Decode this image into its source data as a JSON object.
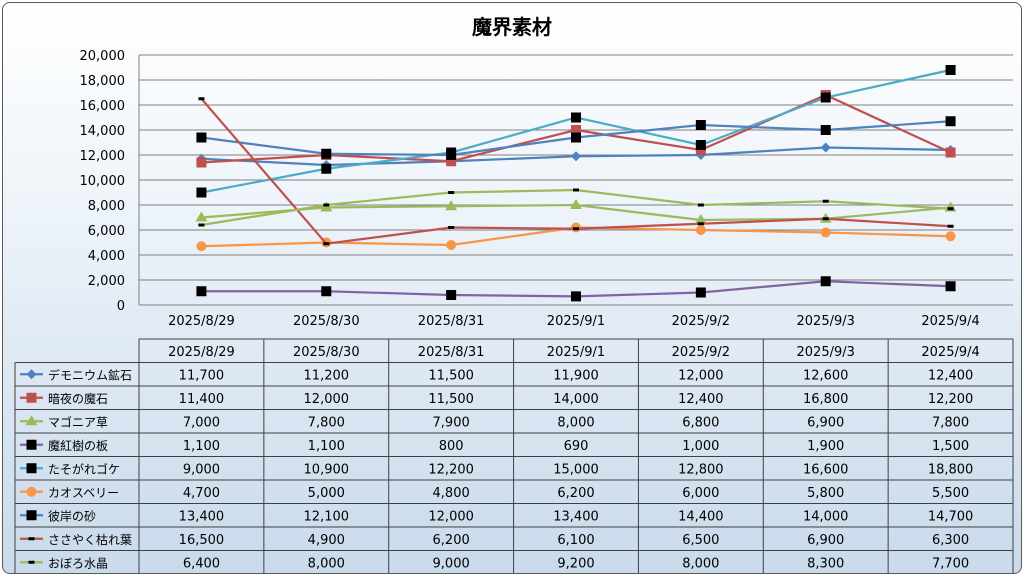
{
  "chart_data": {
    "type": "line",
    "title": "魔界素材",
    "xlabel": "",
    "ylabel": "",
    "ylim": [
      0,
      20000
    ],
    "yticks": [
      "0",
      "2,000",
      "4,000",
      "6,000",
      "8,000",
      "10,000",
      "12,000",
      "14,000",
      "16,000",
      "18,000",
      "20,000"
    ],
    "grid": true,
    "legend": "data-table",
    "categories": [
      "2025/8/29",
      "2025/8/30",
      "2025/8/31",
      "2025/9/1",
      "2025/9/2",
      "2025/9/3",
      "2025/9/4"
    ],
    "series": [
      {
        "name": "デモニウム鉱石",
        "color": "#4f81bd",
        "marker": "diamond",
        "values": [
          11700,
          11200,
          11500,
          11900,
          12000,
          12600,
          12400
        ],
        "labels": [
          "11,700",
          "11,200",
          "11,500",
          "11,900",
          "12,000",
          "12,600",
          "12,400"
        ]
      },
      {
        "name": "暗夜の魔石",
        "color": "#c0504d",
        "marker": "square",
        "values": [
          11400,
          12000,
          11500,
          14000,
          12400,
          16800,
          12200
        ],
        "labels": [
          "11,400",
          "12,000",
          "11,500",
          "14,000",
          "12,400",
          "16,800",
          "12,200"
        ]
      },
      {
        "name": "マゴニア草",
        "color": "#9bbb59",
        "marker": "triangle",
        "values": [
          7000,
          7800,
          7900,
          8000,
          6800,
          6900,
          7800
        ],
        "labels": [
          "7,000",
          "7,800",
          "7,900",
          "8,000",
          "6,800",
          "6,900",
          "7,800"
        ]
      },
      {
        "name": "魔紅樹の板",
        "color": "#8064a2",
        "marker": "bigsquare",
        "values": [
          1100,
          1100,
          800,
          690,
          1000,
          1900,
          1500
        ],
        "labels": [
          "1,100",
          "1,100",
          "800",
          "690",
          "1,000",
          "1,900",
          "1,500"
        ]
      },
      {
        "name": "たそがれゴケ",
        "color": "#4bacc6",
        "marker": "bigsquare",
        "values": [
          9000,
          10900,
          12200,
          15000,
          12800,
          16600,
          18800
        ],
        "labels": [
          "9,000",
          "10,900",
          "12,200",
          "15,000",
          "12,800",
          "16,600",
          "18,800"
        ]
      },
      {
        "name": "カオスベリー",
        "color": "#f79646",
        "marker": "circle",
        "values": [
          4700,
          5000,
          4800,
          6200,
          6000,
          5800,
          5500
        ],
        "labels": [
          "4,700",
          "5,000",
          "4,800",
          "6,200",
          "6,000",
          "5,800",
          "5,500"
        ]
      },
      {
        "name": "彼岸の砂",
        "color": "#4f81bd",
        "marker": "bigsquare",
        "values": [
          13400,
          12100,
          12000,
          13400,
          14400,
          14000,
          14700
        ],
        "labels": [
          "13,400",
          "12,100",
          "12,000",
          "13,400",
          "14,400",
          "14,000",
          "14,700"
        ]
      },
      {
        "name": "ささやく枯れ葉",
        "color": "#c0504d",
        "marker": "dash",
        "values": [
          16500,
          4900,
          6200,
          6100,
          6500,
          6900,
          6300
        ],
        "labels": [
          "16,500",
          "4,900",
          "6,200",
          "6,100",
          "6,500",
          "6,900",
          "6,300"
        ]
      },
      {
        "name": "おぼろ水晶",
        "color": "#9bbb59",
        "marker": "dash",
        "values": [
          6400,
          8000,
          9000,
          9200,
          8000,
          8300,
          7700
        ],
        "labels": [
          "6,400",
          "8,000",
          "9,000",
          "9,200",
          "8,000",
          "8,300",
          "7,700"
        ]
      }
    ]
  }
}
